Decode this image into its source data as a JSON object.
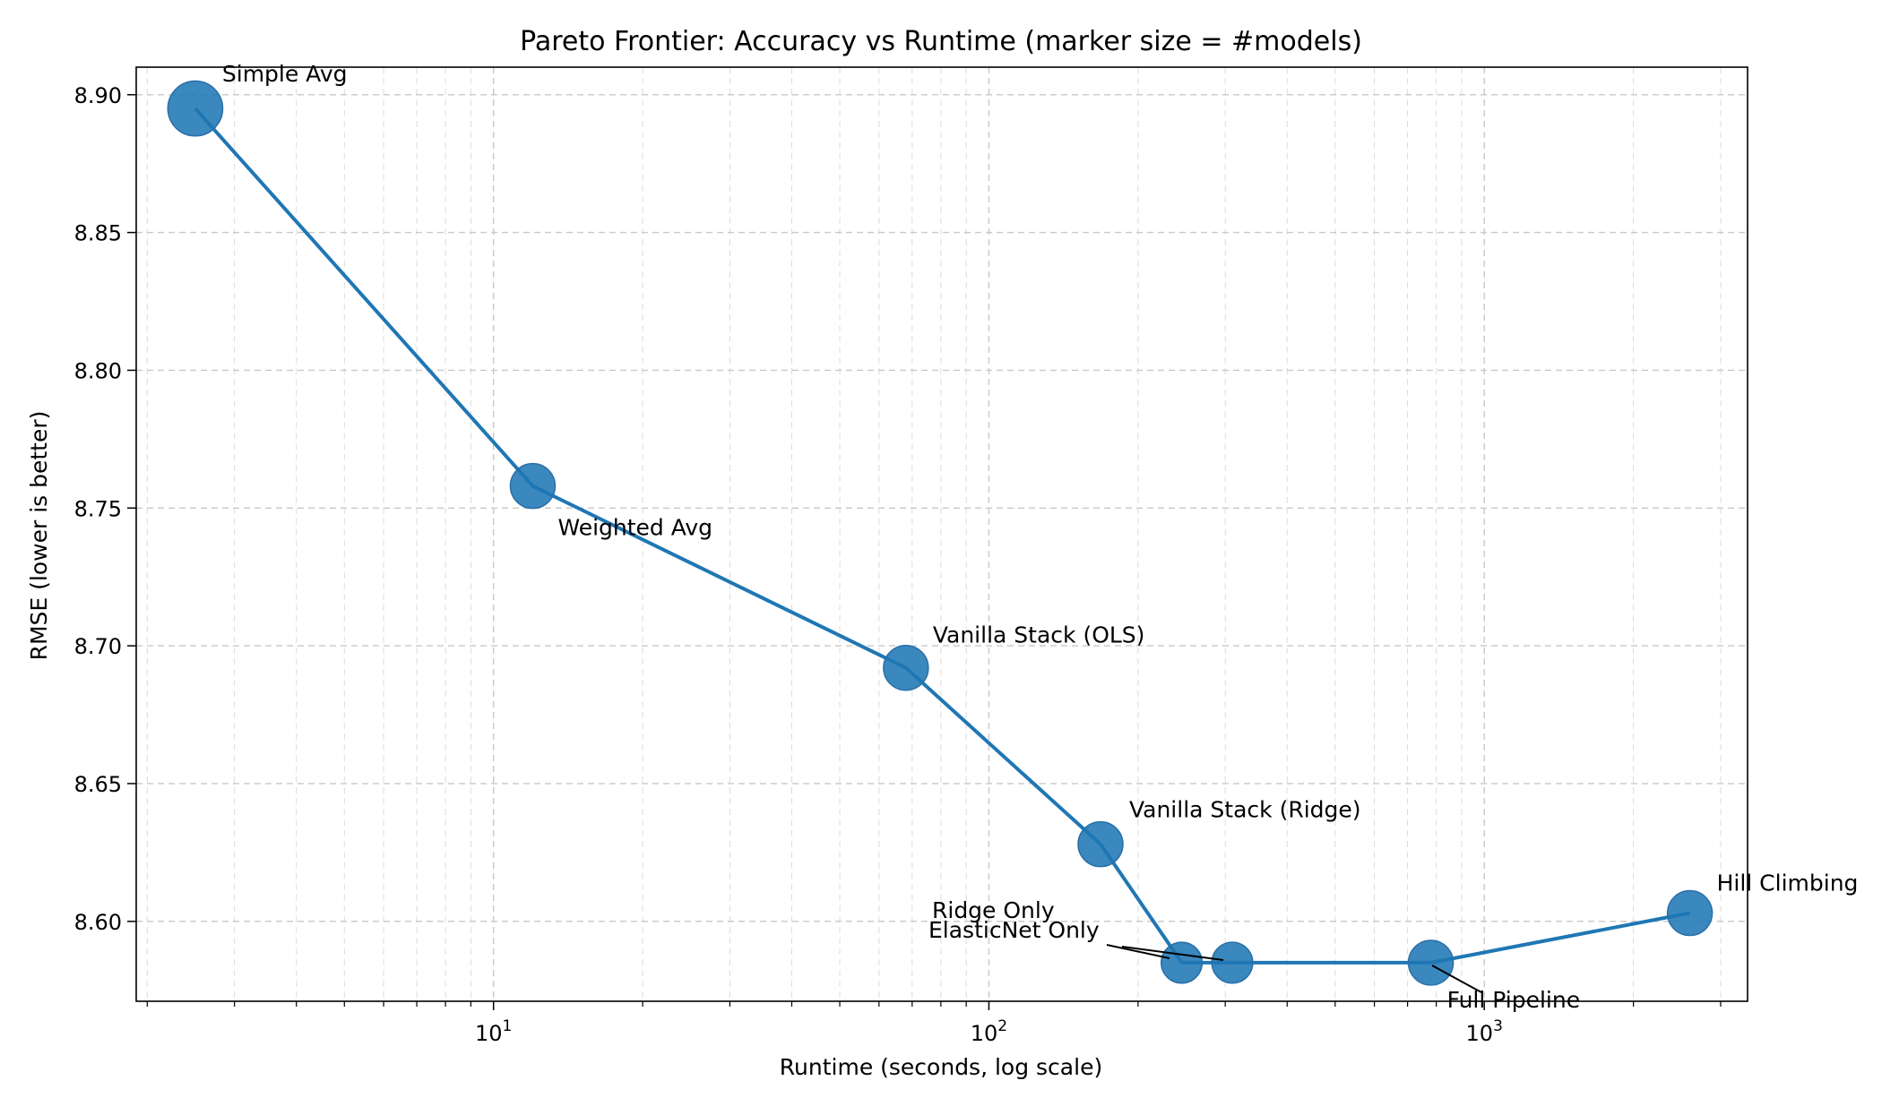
{
  "chart_data": {
    "type": "scatter",
    "title": "Pareto Frontier: Accuracy vs Runtime (marker size = #models)",
    "xlabel": "Runtime (seconds, log scale)",
    "ylabel": "RMSE (lower is better)",
    "x_scale": "log",
    "xlim": [
      1.9,
      3400
    ],
    "ylim": [
      8.571,
      8.91
    ],
    "yticks": [
      "8.60",
      "8.65",
      "8.70",
      "8.75",
      "8.80",
      "8.85",
      "8.90"
    ],
    "xticks": [
      {
        "base": "10",
        "exp": "1",
        "value": 10
      },
      {
        "base": "10",
        "exp": "2",
        "value": 100
      },
      {
        "base": "10",
        "exp": "3",
        "value": 1000
      }
    ],
    "grid": true,
    "color": "#1f77b4",
    "points": [
      {
        "name": "Simple Avg",
        "x": 2.5,
        "y": 8.895,
        "models": 9
      },
      {
        "name": "Weighted Avg",
        "x": 12,
        "y": 8.758,
        "models": 6
      },
      {
        "name": "Vanilla Stack (OLS)",
        "x": 68,
        "y": 8.692,
        "models": 6
      },
      {
        "name": "Vanilla Stack (Ridge)",
        "x": 168,
        "y": 8.628,
        "models": 6
      },
      {
        "name": "Ridge Only",
        "x": 245,
        "y": 8.585,
        "models": 5
      },
      {
        "name": "ElasticNet Only",
        "x": 310,
        "y": 8.585,
        "models": 5
      },
      {
        "name": "Full Pipeline",
        "x": 780,
        "y": 8.585,
        "models": 6
      },
      {
        "name": "Hill Climbing",
        "x": 2600,
        "y": 8.603,
        "models": 6
      }
    ],
    "frontier_line": [
      {
        "x": 2.5,
        "y": 8.895
      },
      {
        "x": 12,
        "y": 8.758
      },
      {
        "x": 68,
        "y": 8.692
      },
      {
        "x": 168,
        "y": 8.628
      },
      {
        "x": 245,
        "y": 8.585
      },
      {
        "x": 780,
        "y": 8.585
      },
      {
        "x": 2600,
        "y": 8.603
      }
    ]
  }
}
